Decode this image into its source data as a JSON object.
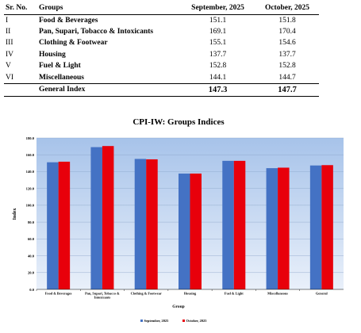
{
  "table": {
    "headers": [
      "Sr. No.",
      "Groups",
      "September, 2025",
      "October, 2025"
    ],
    "rows": [
      {
        "sr": "I",
        "group": "Food & Beverages",
        "sep": "151.1",
        "oct": "151.8"
      },
      {
        "sr": "II",
        "group": "Pan, Supari, Tobacco & Intoxicants",
        "sep": "169.1",
        "oct": "170.4"
      },
      {
        "sr": "III",
        "group": "Clothing & Footwear",
        "sep": "155.1",
        "oct": "154.6"
      },
      {
        "sr": "IV",
        "group": "Housing",
        "sep": "137.7",
        "oct": "137.7"
      },
      {
        "sr": "V",
        "group": "Fuel & Light",
        "sep": "152.8",
        "oct": "152.8"
      },
      {
        "sr": "VI",
        "group": "Miscellaneous",
        "sep": "144.1",
        "oct": "144.7"
      }
    ],
    "total": {
      "group": "General Index",
      "sep": "147.3",
      "oct": "147.7"
    }
  },
  "chart_data": {
    "type": "bar",
    "title": "CPI-IW: Groups Indices",
    "xlabel": "Group",
    "ylabel": "Index",
    "categories": [
      "Food & Beverages",
      "Pan, Supari, Tobacco & Intoxicants",
      "Clothing & Footwear",
      "Housing",
      "Fuel & Light",
      "Miscellaneous",
      "General"
    ],
    "series": [
      {
        "name": "September, 2025",
        "color": "#4472c4",
        "values": [
          151.1,
          169.1,
          155.1,
          137.7,
          152.8,
          144.1,
          147.3
        ]
      },
      {
        "name": "October, 2025",
        "color": "#e8000b",
        "values": [
          151.8,
          170.4,
          154.6,
          137.7,
          152.8,
          144.7,
          147.7
        ]
      }
    ],
    "ylim": [
      0,
      180
    ],
    "yticks": [
      "0.0",
      "20.0",
      "40.0",
      "60.0",
      "80.0",
      "100.0",
      "120.0",
      "140.0",
      "160.0",
      "180.0"
    ],
    "grid": true,
    "legend": "bottom"
  }
}
